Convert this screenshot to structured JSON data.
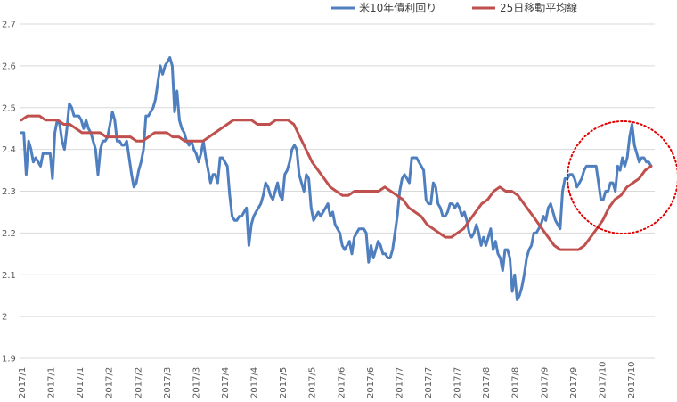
{
  "chart_data": {
    "type": "line",
    "ylim": [
      1.9,
      2.7
    ],
    "yticks": [
      "2.7",
      "2.6",
      "2.5",
      "2.4",
      "2.3",
      "2.2",
      "2.1",
      "2",
      "1.9"
    ],
    "xtick_labels": [
      "2017/1",
      "2017/1",
      "2017/1",
      "2017/2",
      "2017/2",
      "2017/3",
      "2017/3",
      "2017/4",
      "2017/4",
      "2017/5",
      "2017/5",
      "2017/6",
      "2017/6",
      "2017/7",
      "2017/7",
      "2017/7",
      "2017/8",
      "2017/8",
      "2017/9",
      "2017/9",
      "2017/10",
      "2017/10"
    ],
    "grid": "horizontal",
    "legend": "top-right",
    "annotation": "red dotted circle around the late-October rise",
    "series": [
      {
        "name": "米10年債利回り",
        "color": "#4f7fbf",
        "values": [
          2.44,
          2.44,
          2.34,
          2.42,
          2.4,
          2.37,
          2.38,
          2.37,
          2.36,
          2.39,
          2.39,
          2.39,
          2.39,
          2.33,
          2.44,
          2.47,
          2.46,
          2.42,
          2.4,
          2.45,
          2.51,
          2.5,
          2.48,
          2.48,
          2.48,
          2.47,
          2.45,
          2.47,
          2.45,
          2.44,
          2.42,
          2.4,
          2.34,
          2.4,
          2.42,
          2.42,
          2.43,
          2.46,
          2.49,
          2.47,
          2.42,
          2.42,
          2.41,
          2.41,
          2.42,
          2.38,
          2.34,
          2.31,
          2.32,
          2.35,
          2.37,
          2.4,
          2.48,
          2.48,
          2.49,
          2.5,
          2.52,
          2.56,
          2.6,
          2.58,
          2.6,
          2.61,
          2.62,
          2.6,
          2.49,
          2.54,
          2.47,
          2.45,
          2.44,
          2.42,
          2.41,
          2.42,
          2.4,
          2.39,
          2.37,
          2.39,
          2.42,
          2.38,
          2.35,
          2.32,
          2.34,
          2.34,
          2.32,
          2.38,
          2.38,
          2.37,
          2.36,
          2.29,
          2.24,
          2.23,
          2.23,
          2.24,
          2.24,
          2.25,
          2.26,
          2.17,
          2.22,
          2.24,
          2.25,
          2.26,
          2.27,
          2.29,
          2.32,
          2.31,
          2.29,
          2.28,
          2.3,
          2.32,
          2.29,
          2.28,
          2.34,
          2.35,
          2.37,
          2.4,
          2.41,
          2.4,
          2.34,
          2.32,
          2.3,
          2.34,
          2.33,
          2.26,
          2.23,
          2.24,
          2.25,
          2.24,
          2.25,
          2.26,
          2.27,
          2.24,
          2.25,
          2.22,
          2.21,
          2.2,
          2.17,
          2.16,
          2.17,
          2.18,
          2.15,
          2.19,
          2.2,
          2.21,
          2.21,
          2.21,
          2.2,
          2.13,
          2.17,
          2.14,
          2.16,
          2.18,
          2.17,
          2.15,
          2.15,
          2.14,
          2.14,
          2.16,
          2.2,
          2.24,
          2.3,
          2.33,
          2.34,
          2.33,
          2.32,
          2.38,
          2.38,
          2.38,
          2.37,
          2.36,
          2.35,
          2.28,
          2.27,
          2.27,
          2.32,
          2.31,
          2.27,
          2.26,
          2.24,
          2.24,
          2.25,
          2.27,
          2.27,
          2.26,
          2.27,
          2.26,
          2.24,
          2.25,
          2.23,
          2.2,
          2.19,
          2.2,
          2.22,
          2.2,
          2.17,
          2.19,
          2.17,
          2.19,
          2.21,
          2.16,
          2.18,
          2.15,
          2.14,
          2.11,
          2.16,
          2.16,
          2.14,
          2.06,
          2.1,
          2.04,
          2.05,
          2.07,
          2.1,
          2.14,
          2.16,
          2.17,
          2.2,
          2.2,
          2.21,
          2.22,
          2.24,
          2.23,
          2.26,
          2.27,
          2.25,
          2.23,
          2.22,
          2.21,
          2.3,
          2.33,
          2.33,
          2.34,
          2.34,
          2.33,
          2.31,
          2.32,
          2.33,
          2.35,
          2.36,
          2.36,
          2.36,
          2.36,
          2.36,
          2.32,
          2.28,
          2.28,
          2.3,
          2.3,
          2.32,
          2.32,
          2.3,
          2.36,
          2.35,
          2.38,
          2.36,
          2.38,
          2.43,
          2.46,
          2.41,
          2.39,
          2.37,
          2.38,
          2.38,
          2.37,
          2.37,
          2.36
        ],
        "values_note": ""
      },
      {
        "name": "25日移動平均線",
        "color": "#c0504d",
        "values": [
          2.47,
          2.48,
          2.48,
          2.48,
          2.47,
          2.47,
          2.47,
          2.46,
          2.46,
          2.45,
          2.44,
          2.44,
          2.44,
          2.44,
          2.43,
          2.43,
          2.43,
          2.43,
          2.43,
          2.42,
          2.42,
          2.43,
          2.44,
          2.44,
          2.44,
          2.43,
          2.43,
          2.42,
          2.42,
          2.42,
          2.42,
          2.43,
          2.44,
          2.45,
          2.46,
          2.47,
          2.47,
          2.47,
          2.47,
          2.46,
          2.46,
          2.46,
          2.47,
          2.47,
          2.47,
          2.46,
          2.43,
          2.4,
          2.37,
          2.35,
          2.33,
          2.31,
          2.3,
          2.29,
          2.29,
          2.3,
          2.3,
          2.3,
          2.3,
          2.3,
          2.31,
          2.3,
          2.29,
          2.28,
          2.26,
          2.25,
          2.24,
          2.22,
          2.21,
          2.2,
          2.19,
          2.19,
          2.2,
          2.21,
          2.23,
          2.25,
          2.27,
          2.28,
          2.3,
          2.31,
          2.3,
          2.3,
          2.29,
          2.27,
          2.25,
          2.23,
          2.21,
          2.19,
          2.17,
          2.16,
          2.16,
          2.16,
          2.16,
          2.17,
          2.19,
          2.21,
          2.23,
          2.26,
          2.28,
          2.29,
          2.31,
          2.32,
          2.33,
          2.35,
          2.36
        ]
      }
    ]
  }
}
